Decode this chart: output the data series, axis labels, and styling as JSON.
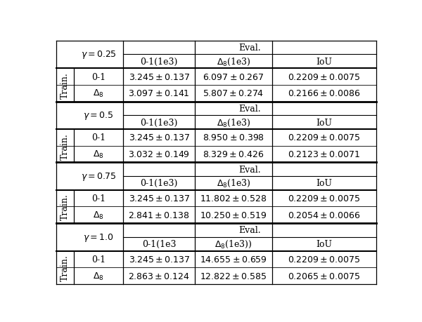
{
  "sections": [
    {
      "gamma": "$\\gamma = 0.25$",
      "eval_cols": [
        "0-1(1e3)",
        "$\\Delta_8$(1e3)",
        "IoU"
      ],
      "rows": [
        {
          "train": "0-1",
          "v1": "$3.245\\pm0.137$",
          "v2": "$6.097\\pm0.267$",
          "v3": "$0.2209\\pm0.0075$"
        },
        {
          "train": "$\\Delta_8$",
          "v1": "$3.097\\pm0.141$",
          "v2": "$5.807\\pm0.274$",
          "v3": "$0.2166\\pm0.0086$"
        }
      ]
    },
    {
      "gamma": "$\\gamma = 0.5$",
      "eval_cols": [
        "0-1(1e3)",
        "$\\Delta_8$(1e3)",
        "IoU"
      ],
      "rows": [
        {
          "train": "0-1",
          "v1": "$3.245\\pm0.137$",
          "v2": "$8.950\\pm0.398$",
          "v3": "$0.2209\\pm0.0075$"
        },
        {
          "train": "$\\Delta_8$",
          "v1": "$3.032\\pm0.149$",
          "v2": "$8.329\\pm0.426$",
          "v3": "$0.2123\\pm0.0071$"
        }
      ]
    },
    {
      "gamma": "$\\gamma = 0.75$",
      "eval_cols": [
        "0-1(1e3)",
        "$\\Delta_8$(1e3)",
        "IoU"
      ],
      "rows": [
        {
          "train": "0-1",
          "v1": "$3.245\\pm0.137$",
          "v2": "$11.802\\pm0.528$",
          "v3": "$0.2209\\pm0.0075$"
        },
        {
          "train": "$\\Delta_8$",
          "v1": "$2.841\\pm0.138$",
          "v2": "$10.250\\pm0.519$",
          "v3": "$0.2054\\pm0.0066$"
        }
      ]
    },
    {
      "gamma": "$\\gamma = 1.0$",
      "eval_cols": [
        "0-1(1e3",
        "$\\Delta_8$(1e3))",
        "IoU"
      ],
      "rows": [
        {
          "train": "0-1",
          "v1": "$3.245\\pm0.137$",
          "v2": "$14.655\\pm0.659$",
          "v3": "$0.2209\\pm0.0075$"
        },
        {
          "train": "$\\Delta_8$",
          "v1": "$2.863\\pm0.124$",
          "v2": "$12.822\\pm0.585$",
          "v3": "$0.2065\\pm0.0075$"
        }
      ]
    }
  ],
  "bg_color": "#ffffff",
  "line_color": "#000000",
  "font_size": 9.0
}
